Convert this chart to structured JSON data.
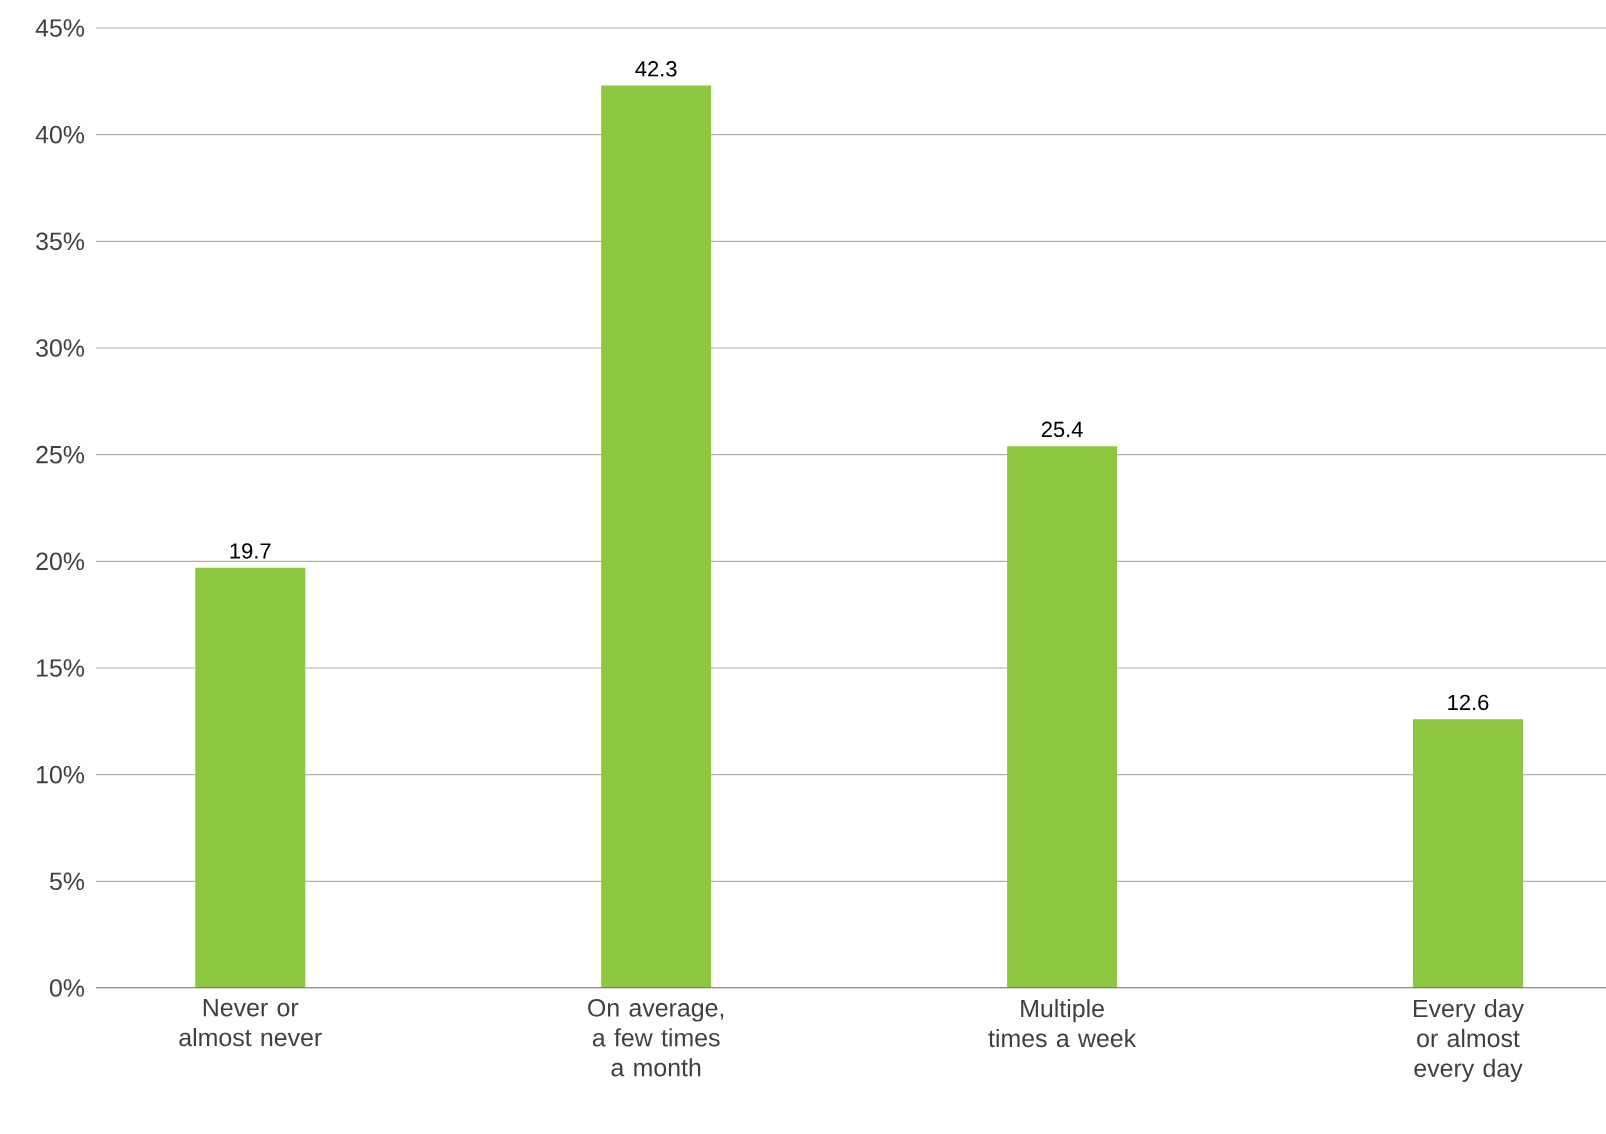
{
  "chart_data": {
    "type": "bar",
    "categories": [
      "Never or almost never",
      "On average, a few times a month",
      "Multiple times a week",
      "Every day or almost every day"
    ],
    "values": [
      19.7,
      42.3,
      25.4,
      12.6
    ],
    "color": "#8dc63f",
    "ylim": [
      0,
      45
    ],
    "yticks": [
      {
        "value": 0,
        "label": "0%"
      },
      {
        "value": 5,
        "label": "5%"
      },
      {
        "value": 10,
        "label": "10%"
      },
      {
        "value": 15,
        "label": "15%"
      },
      {
        "value": 20,
        "label": "20%"
      },
      {
        "value": 25,
        "label": "25%"
      },
      {
        "value": 30,
        "label": "30%"
      },
      {
        "value": 35,
        "label": "35%"
      },
      {
        "value": 40,
        "label": "40%"
      },
      {
        "value": 45,
        "label": "45%"
      }
    ],
    "grid": "y",
    "data_labels": true
  }
}
